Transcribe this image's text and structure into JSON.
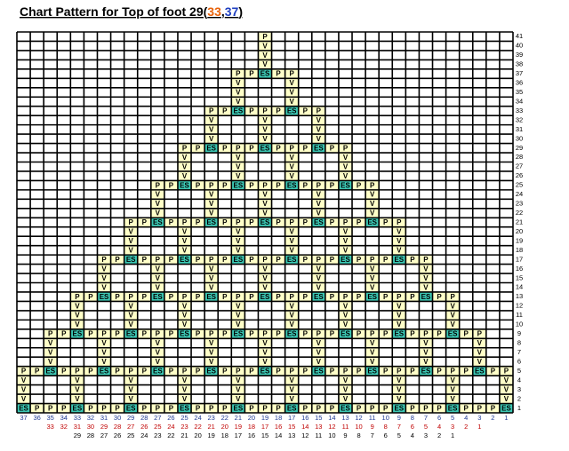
{
  "title": [
    {
      "text": "Chart Pattern for Top of foot 29(",
      "color": "#000000"
    },
    {
      "text": "33",
      "color": "#e8620a"
    },
    {
      "text": ",",
      "color": "#000000"
    },
    {
      "text": "37",
      "color": "#1f3fc0"
    },
    {
      "text": ")",
      "color": "#000000"
    }
  ],
  "grid": {
    "colors": {
      "P": "#ffffc8",
      "V": "#ffffc8",
      "ES": "#3cc8b4"
    },
    "rows": [
      {
        "number": 41,
        "cells": {
          "19": "P"
        }
      },
      {
        "number": 40,
        "cells": {
          "19": "V"
        }
      },
      {
        "number": 39,
        "cells": {
          "19": "V"
        }
      },
      {
        "number": 38,
        "cells": {
          "19": "V"
        }
      },
      {
        "number": 37,
        "cells": {
          "21": "P",
          "20": "P",
          "19": "ES",
          "18": "P",
          "17": "P"
        }
      },
      {
        "number": 36,
        "cells": {
          "21": "V",
          "17": "V"
        }
      },
      {
        "number": 35,
        "cells": {
          "21": "V",
          "17": "V"
        }
      },
      {
        "number": 34,
        "cells": {
          "21": "V",
          "17": "V"
        }
      },
      {
        "number": 33,
        "cells": {
          "23": "P",
          "22": "P",
          "21": "ES",
          "20": "P",
          "19": "P",
          "18": "P",
          "17": "ES",
          "16": "P",
          "15": "P"
        }
      },
      {
        "number": 32,
        "cells": {
          "23": "V",
          "19": "V",
          "15": "V"
        }
      },
      {
        "number": 31,
        "cells": {
          "23": "V",
          "19": "V",
          "15": "V"
        }
      },
      {
        "number": 30,
        "cells": {
          "23": "V",
          "19": "V",
          "15": "V"
        }
      },
      {
        "number": 29,
        "cells": {
          "25": "P",
          "24": "P",
          "23": "ES",
          "22": "P",
          "21": "P",
          "20": "P",
          "19": "ES",
          "18": "P",
          "17": "P",
          "16": "P",
          "15": "ES",
          "14": "P",
          "13": "P"
        }
      },
      {
        "number": 28,
        "cells": {
          "25": "V",
          "21": "V",
          "17": "V",
          "13": "V"
        }
      },
      {
        "number": 27,
        "cells": {
          "25": "V",
          "21": "V",
          "17": "V",
          "13": "V"
        }
      },
      {
        "number": 26,
        "cells": {
          "25": "V",
          "21": "V",
          "17": "V",
          "13": "V"
        }
      },
      {
        "number": 25,
        "cells": {
          "27": "P",
          "26": "P",
          "25": "ES",
          "24": "P",
          "23": "P",
          "22": "P",
          "21": "ES",
          "20": "P",
          "19": "P",
          "18": "P",
          "17": "ES",
          "16": "P",
          "15": "P",
          "14": "P",
          "13": "ES",
          "12": "P",
          "11": "P"
        }
      },
      {
        "number": 24,
        "cells": {
          "27": "V",
          "23": "V",
          "19": "V",
          "15": "V",
          "11": "V"
        }
      },
      {
        "number": 23,
        "cells": {
          "27": "V",
          "23": "V",
          "19": "V",
          "15": "V",
          "11": "V"
        }
      },
      {
        "number": 22,
        "cells": {
          "27": "V",
          "23": "V",
          "19": "V",
          "15": "V",
          "11": "V"
        }
      },
      {
        "number": 21,
        "cells": {
          "29": "P",
          "28": "P",
          "27": "ES",
          "26": "P",
          "25": "P",
          "24": "P",
          "23": "ES",
          "22": "P",
          "21": "P",
          "20": "P",
          "19": "ES",
          "18": "P",
          "17": "P",
          "16": "P",
          "15": "ES",
          "14": "P",
          "13": "P",
          "12": "P",
          "11": "ES",
          "10": "P",
          "9": "P"
        }
      },
      {
        "number": 20,
        "cells": {
          "29": "V",
          "25": "V",
          "21": "V",
          "17": "V",
          "13": "V",
          "9": "V"
        }
      },
      {
        "number": 19,
        "cells": {
          "29": "V",
          "25": "V",
          "21": "V",
          "17": "V",
          "13": "V",
          "9": "V"
        }
      },
      {
        "number": 18,
        "cells": {
          "29": "V",
          "25": "V",
          "21": "V",
          "17": "V",
          "13": "V",
          "9": "V"
        }
      },
      {
        "number": 17,
        "cells": {
          "31": "P",
          "30": "P",
          "29": "ES",
          "28": "P",
          "27": "P",
          "26": "P",
          "25": "ES",
          "24": "P",
          "23": "P",
          "22": "P",
          "21": "ES",
          "20": "P",
          "19": "P",
          "18": "P",
          "17": "ES",
          "16": "P",
          "15": "P",
          "14": "P",
          "13": "ES",
          "12": "P",
          "11": "P",
          "10": "P",
          "9": "ES",
          "8": "P",
          "7": "P"
        }
      },
      {
        "number": 16,
        "cells": {
          "31": "V",
          "27": "V",
          "23": "V",
          "19": "V",
          "15": "V",
          "11": "V",
          "7": "V"
        }
      },
      {
        "number": 15,
        "cells": {
          "31": "V",
          "27": "V",
          "23": "V",
          "19": "V",
          "15": "V",
          "11": "V",
          "7": "V"
        }
      },
      {
        "number": 14,
        "cells": {
          "31": "V",
          "27": "V",
          "23": "V",
          "19": "V",
          "15": "V",
          "11": "V",
          "7": "V"
        }
      },
      {
        "number": 13,
        "cells": {
          "33": "P",
          "32": "P",
          "31": "ES",
          "30": "P",
          "29": "P",
          "28": "P",
          "27": "ES",
          "26": "P",
          "25": "P",
          "24": "P",
          "23": "ES",
          "22": "P",
          "21": "P",
          "20": "P",
          "19": "ES",
          "18": "P",
          "17": "P",
          "16": "P",
          "15": "ES",
          "14": "P",
          "13": "P",
          "12": "P",
          "11": "ES",
          "10": "P",
          "9": "P",
          "8": "P",
          "7": "ES",
          "6": "P",
          "5": "P"
        }
      },
      {
        "number": 12,
        "cells": {
          "33": "V",
          "29": "V",
          "25": "V",
          "21": "V",
          "17": "V",
          "13": "V",
          "9": "V",
          "5": "V"
        }
      },
      {
        "number": 11,
        "cells": {
          "33": "V",
          "29": "V",
          "25": "V",
          "21": "V",
          "17": "V",
          "13": "V",
          "9": "V",
          "5": "V"
        }
      },
      {
        "number": 10,
        "cells": {
          "33": "V",
          "29": "V",
          "25": "V",
          "21": "V",
          "17": "V",
          "13": "V",
          "9": "V",
          "5": "V"
        }
      },
      {
        "number": 9,
        "cells": {
          "35": "P",
          "34": "P",
          "33": "ES",
          "32": "P",
          "31": "P",
          "30": "P",
          "29": "ES",
          "28": "P",
          "27": "P",
          "26": "P",
          "25": "ES",
          "24": "P",
          "23": "P",
          "22": "P",
          "21": "ES",
          "20": "P",
          "19": "P",
          "18": "P",
          "17": "ES",
          "16": "P",
          "15": "P",
          "14": "P",
          "13": "ES",
          "12": "P",
          "11": "P",
          "10": "P",
          "9": "ES",
          "8": "P",
          "7": "P",
          "6": "P",
          "5": "ES",
          "4": "P",
          "3": "P"
        }
      },
      {
        "number": 8,
        "cells": {
          "35": "V",
          "31": "V",
          "27": "V",
          "23": "V",
          "19": "V",
          "15": "V",
          "11": "V",
          "7": "V",
          "3": "V"
        }
      },
      {
        "number": 7,
        "cells": {
          "35": "V",
          "31": "V",
          "27": "V",
          "23": "V",
          "19": "V",
          "15": "V",
          "11": "V",
          "7": "V",
          "3": "V"
        }
      },
      {
        "number": 6,
        "cells": {
          "35": "V",
          "31": "V",
          "27": "V",
          "23": "V",
          "19": "V",
          "15": "V",
          "11": "V",
          "7": "V",
          "3": "V"
        }
      },
      {
        "number": 5,
        "cells": {
          "37": "P",
          "36": "P",
          "35": "ES",
          "34": "P",
          "33": "P",
          "32": "P",
          "31": "ES",
          "30": "P",
          "29": "P",
          "28": "P",
          "27": "ES",
          "26": "P",
          "25": "P",
          "24": "P",
          "23": "ES",
          "22": "P",
          "21": "P",
          "20": "P",
          "19": "ES",
          "18": "P",
          "17": "P",
          "16": "P",
          "15": "ES",
          "14": "P",
          "13": "P",
          "12": "P",
          "11": "ES",
          "10": "P",
          "9": "P",
          "8": "P",
          "7": "ES",
          "6": "P",
          "5": "P",
          "4": "P",
          "3": "ES",
          "2": "P",
          "1": "P"
        }
      },
      {
        "number": 4,
        "cells": {
          "37": "V",
          "33": "V",
          "29": "V",
          "25": "V",
          "21": "V",
          "17": "V",
          "13": "V",
          "9": "V",
          "5": "V",
          "1": "V"
        }
      },
      {
        "number": 3,
        "cells": {
          "37": "V",
          "33": "V",
          "29": "V",
          "25": "V",
          "21": "V",
          "17": "V",
          "13": "V",
          "9": "V",
          "5": "V",
          "1": "V"
        }
      },
      {
        "number": 2,
        "cells": {
          "37": "V",
          "33": "V",
          "29": "V",
          "25": "V",
          "21": "V",
          "17": "V",
          "13": "V",
          "9": "V",
          "5": "V",
          "1": "V"
        }
      },
      {
        "number": 1,
        "cells": {
          "37": "ES",
          "36": "P",
          "35": "P",
          "34": "P",
          "33": "ES",
          "32": "P",
          "31": "P",
          "30": "P",
          "29": "ES",
          "28": "P",
          "27": "P",
          "26": "P",
          "25": "ES",
          "24": "P",
          "23": "P",
          "22": "P",
          "21": "ES",
          "20": "P",
          "19": "P",
          "18": "P",
          "17": "ES",
          "16": "P",
          "15": "P",
          "14": "P",
          "13": "ES",
          "12": "P",
          "11": "P",
          "10": "P",
          "9": "ES",
          "8": "P",
          "7": "P",
          "6": "P",
          "5": "ES",
          "4": "P",
          "3": "P",
          "2": "P",
          "1": "ES"
        }
      }
    ],
    "column_numbers": [
      {
        "color": "#1f3a93",
        "values": [
          37,
          36,
          35,
          34,
          33,
          32,
          31,
          30,
          29,
          28,
          27,
          26,
          25,
          24,
          23,
          22,
          21,
          20,
          19,
          18,
          17,
          16,
          15,
          14,
          13,
          12,
          11,
          10,
          9,
          8,
          7,
          6,
          5,
          4,
          3,
          2,
          1
        ]
      },
      {
        "color": "#c00000",
        "values": [
          33,
          32,
          31,
          30,
          29,
          28,
          27,
          26,
          25,
          24,
          23,
          22,
          21,
          20,
          19,
          18,
          17,
          16,
          15,
          14,
          13,
          12,
          11,
          10,
          9,
          8,
          7,
          6,
          5,
          4,
          3,
          2,
          1
        ]
      },
      {
        "color": "#000000",
        "values": [
          29,
          28,
          27,
          26,
          25,
          24,
          23,
          22,
          21,
          20,
          19,
          18,
          17,
          16,
          15,
          14,
          13,
          12,
          11,
          10,
          9,
          8,
          7,
          6,
          5,
          4,
          3,
          2,
          1
        ]
      }
    ]
  }
}
